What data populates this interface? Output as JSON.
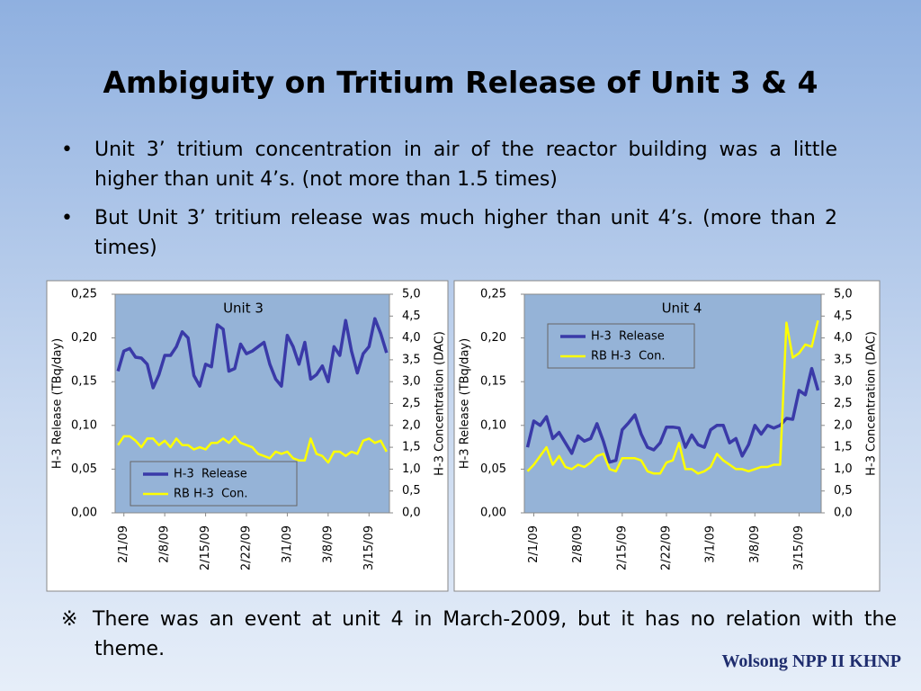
{
  "title": "Ambiguity on Tritium Release of Unit 3 & 4",
  "bullets": [
    "Unit 3’ tritium concentration in air of the reactor building was a little higher than unit 4’s. (not more than 1.5 times)",
    "But Unit 3’ tritium release was much higher than unit 4’s. (more than 2 times)"
  ],
  "note": "※ There was an event at unit 4 in March-2009, but it has no relation with the theme.",
  "footer": "Wolsong NPP II KHNP",
  "chart_data": [
    {
      "type": "line",
      "title": "Unit 3",
      "ylabel": "H-3  Release (TBq/day)",
      "y2label": "H-3  Concentration (DAC)",
      "legend": "lower left",
      "grid": false,
      "categories": [
        null,
        "2/1/09",
        null,
        null,
        null,
        null,
        null,
        null,
        "2/8/09",
        null,
        null,
        null,
        null,
        null,
        null,
        "2/15/09",
        null,
        null,
        null,
        null,
        null,
        null,
        "2/22/09",
        null,
        null,
        null,
        null,
        null,
        null,
        "3/1/09",
        null,
        null,
        null,
        null,
        null,
        null,
        "3/8/09",
        null,
        null,
        null,
        null,
        null,
        null,
        "3/15/09",
        null,
        null,
        null
      ],
      "ylim": [
        0,
        0.25
      ],
      "yticks": [
        {
          "value": 0,
          "label": "0,00"
        },
        {
          "value": 0.05,
          "label": "0,05"
        },
        {
          "value": 0.1,
          "label": "0,10"
        },
        {
          "value": 0.15,
          "label": "0,15"
        },
        {
          "value": 0.2,
          "label": "0,20"
        },
        {
          "value": 0.25,
          "label": "0,25"
        }
      ],
      "y2lim": [
        0,
        5
      ],
      "y2ticks": [
        {
          "value": 0,
          "label": "0,0"
        },
        {
          "value": 0.5,
          "label": "0,5"
        },
        {
          "value": 1,
          "label": "1,0"
        },
        {
          "value": 1.5,
          "label": "1,5"
        },
        {
          "value": 2,
          "label": "2,0"
        },
        {
          "value": 2.5,
          "label": "2,5"
        },
        {
          "value": 3,
          "label": "3,0"
        },
        {
          "value": 3.5,
          "label": "3,5"
        },
        {
          "value": 4,
          "label": "4,0"
        },
        {
          "value": 4.5,
          "label": "4,5"
        },
        {
          "value": 5,
          "label": "5,0"
        }
      ],
      "series": [
        {
          "name": "H-3  Release",
          "color": "#3a3aa8",
          "values": [
            0.162,
            0.185,
            0.188,
            0.178,
            0.177,
            0.17,
            0.143,
            0.158,
            0.18,
            0.18,
            0.19,
            0.207,
            0.2,
            0.157,
            0.145,
            0.17,
            0.167,
            0.215,
            0.21,
            0.162,
            0.165,
            0.193,
            0.182,
            0.185,
            0.19,
            0.195,
            0.17,
            0.153,
            0.145,
            0.203,
            0.19,
            0.17,
            0.195,
            0.153,
            0.158,
            0.168,
            0.15,
            0.19,
            0.18,
            0.22,
            0.185,
            0.16,
            0.182,
            0.19,
            0.222,
            0.205,
            0.183
          ]
        },
        {
          "name": "RB H-3  Con.",
          "color": "#ffff00",
          "axis": "y2",
          "values": [
            1.55,
            1.75,
            1.75,
            1.65,
            1.5,
            1.7,
            1.7,
            1.55,
            1.65,
            1.5,
            1.7,
            1.55,
            1.55,
            1.45,
            1.5,
            1.45,
            1.6,
            1.6,
            1.7,
            1.6,
            1.75,
            1.6,
            1.55,
            1.5,
            1.35,
            1.3,
            1.25,
            1.4,
            1.35,
            1.4,
            1.25,
            1.2,
            1.2,
            1.7,
            1.35,
            1.3,
            1.15,
            1.4,
            1.4,
            1.3,
            1.4,
            1.35,
            1.65,
            1.7,
            1.6,
            1.65,
            1.4
          ]
        }
      ]
    },
    {
      "type": "line",
      "title": "Unit 4",
      "ylabel": "H-3  Release (TBq/day)",
      "y2label": "H-3  Concentration (DAC)",
      "legend": "upper left",
      "grid": false,
      "categories": [
        null,
        "2/1/09",
        null,
        null,
        null,
        null,
        null,
        null,
        "2/8/09",
        null,
        null,
        null,
        null,
        null,
        null,
        "2/15/09",
        null,
        null,
        null,
        null,
        null,
        null,
        "2/22/09",
        null,
        null,
        null,
        null,
        null,
        null,
        "3/1/09",
        null,
        null,
        null,
        null,
        null,
        null,
        "3/8/09",
        null,
        null,
        null,
        null,
        null,
        null,
        "3/15/09",
        null,
        null,
        null
      ],
      "ylim": [
        0,
        0.25
      ],
      "yticks": [
        {
          "value": 0,
          "label": "0,00"
        },
        {
          "value": 0.05,
          "label": "0,05"
        },
        {
          "value": 0.1,
          "label": "0,10"
        },
        {
          "value": 0.15,
          "label": "0,15"
        },
        {
          "value": 0.2,
          "label": "0,20"
        },
        {
          "value": 0.25,
          "label": "0,25"
        }
      ],
      "y2lim": [
        0,
        5
      ],
      "y2ticks": [
        {
          "value": 0,
          "label": "0,0"
        },
        {
          "value": 0.5,
          "label": "0,5"
        },
        {
          "value": 1,
          "label": "1,0"
        },
        {
          "value": 1.5,
          "label": "1,5"
        },
        {
          "value": 2,
          "label": "2,0"
        },
        {
          "value": 2.5,
          "label": "2,5"
        },
        {
          "value": 3,
          "label": "3,0"
        },
        {
          "value": 3.5,
          "label": "3,5"
        },
        {
          "value": 4,
          "label": "4,0"
        },
        {
          "value": 4.5,
          "label": "4,5"
        },
        {
          "value": 5,
          "label": "5,0"
        }
      ],
      "series": [
        {
          "name": "H-3  Release",
          "color": "#3a3aa8",
          "values": [
            0.075,
            0.105,
            0.1,
            0.11,
            0.085,
            0.092,
            0.08,
            0.068,
            0.088,
            0.082,
            0.085,
            0.102,
            0.082,
            0.058,
            0.06,
            0.095,
            0.103,
            0.112,
            0.09,
            0.075,
            0.072,
            0.08,
            0.098,
            0.098,
            0.097,
            0.075,
            0.089,
            0.078,
            0.075,
            0.095,
            0.1,
            0.1,
            0.08,
            0.085,
            0.065,
            0.078,
            0.1,
            0.09,
            0.1,
            0.097,
            0.1,
            0.108,
            0.107,
            0.14,
            0.135,
            0.165,
            0.14
          ]
        },
        {
          "name": "RB H-3  Con.",
          "color": "#ffff00",
          "axis": "y2",
          "values": [
            0.95,
            1.1,
            1.3,
            1.5,
            1.1,
            1.3,
            1.05,
            1.0,
            1.1,
            1.05,
            1.15,
            1.3,
            1.35,
            1.0,
            0.95,
            1.25,
            1.25,
            1.25,
            1.2,
            0.95,
            0.9,
            0.9,
            1.15,
            1.2,
            1.6,
            1.0,
            1.0,
            0.9,
            0.95,
            1.05,
            1.35,
            1.2,
            1.1,
            1.0,
            1.0,
            0.95,
            1.0,
            1.05,
            1.05,
            1.1,
            1.1,
            4.35,
            3.55,
            3.65,
            3.85,
            3.8,
            4.4
          ]
        }
      ]
    }
  ]
}
